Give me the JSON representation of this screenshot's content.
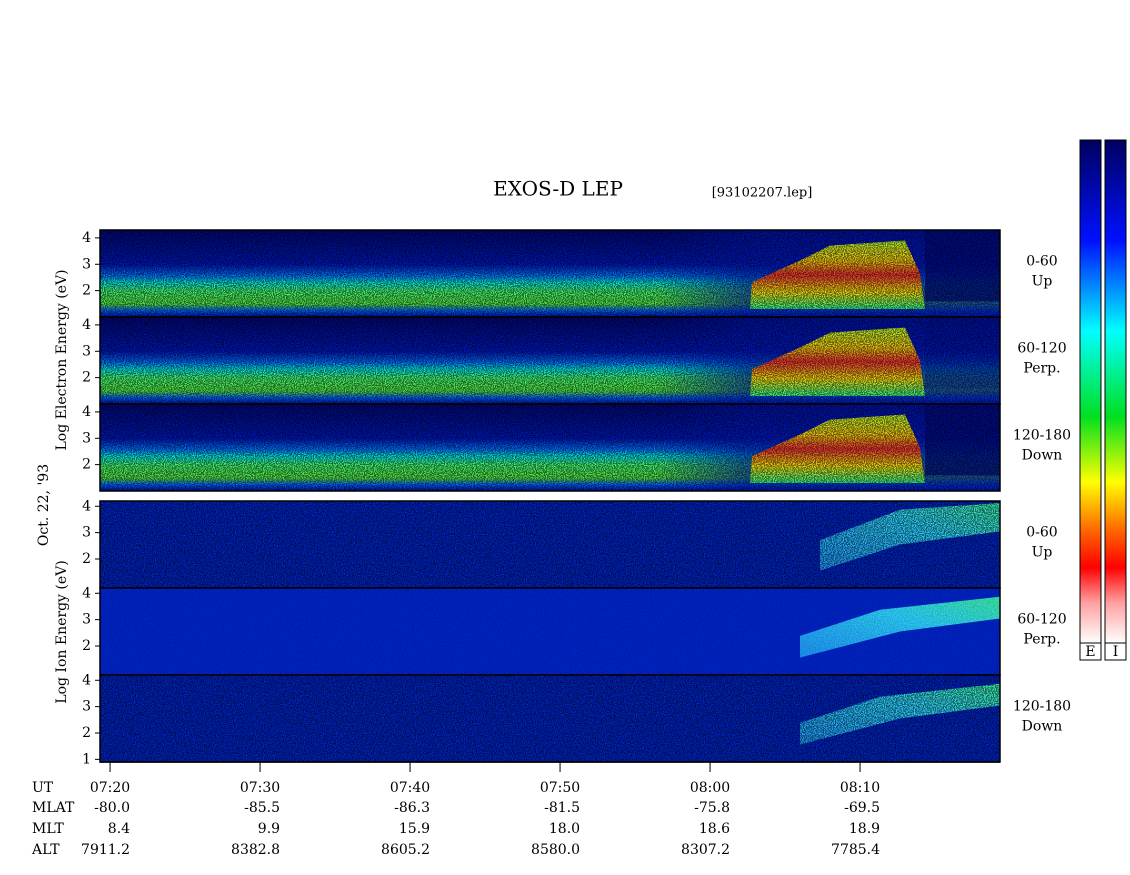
{
  "chart_data": {
    "type": "spectrogram",
    "title": "EXOS-D LEP",
    "file_label": "[93102207.lep]",
    "date_label": "Oct. 22, '93",
    "group_labels": {
      "electron": "Log  Electron  Energy (eV)",
      "ion": "Log  Ion  Energy (eV)"
    },
    "xlim": [
      439.33,
      499.33
    ],
    "xticks": [
      {
        "value": 440,
        "label": "07:20"
      },
      {
        "value": 450,
        "label": "07:30"
      },
      {
        "value": 460,
        "label": "07:40"
      },
      {
        "value": 470,
        "label": "07:50"
      },
      {
        "value": 480,
        "label": "08:00"
      },
      {
        "value": 490,
        "label": "08:10"
      }
    ],
    "panels": [
      {
        "group": "electron",
        "label": [
          "0-60",
          "Up"
        ],
        "ylim": [
          1,
          4.3
        ],
        "yticks": [
          2,
          3,
          4
        ]
      },
      {
        "group": "electron",
        "label": [
          "60-120",
          "Perp."
        ],
        "ylim": [
          1,
          4.3
        ],
        "yticks": [
          2,
          3,
          4
        ]
      },
      {
        "group": "electron",
        "label": [
          "120-180",
          "Down"
        ],
        "ylim": [
          1,
          4.3
        ],
        "yticks": [
          2,
          3,
          4
        ]
      },
      {
        "group": "ion",
        "label": [
          "0-60",
          "Up"
        ],
        "ylim": [
          0.9,
          4.2
        ],
        "yticks": [
          2,
          3,
          4
        ]
      },
      {
        "group": "ion",
        "label": [
          "60-120",
          "Perp."
        ],
        "ylim": [
          0.9,
          4.2
        ],
        "yticks": [
          2,
          3,
          4
        ]
      },
      {
        "group": "ion",
        "label": [
          "120-180",
          "Down"
        ],
        "ylim": [
          0.9,
          4.2
        ],
        "yticks": [
          1,
          2,
          3,
          4
        ]
      }
    ],
    "ephemeris": {
      "row_labels": [
        "UT",
        "MLAT",
        "MLT",
        "ALT"
      ],
      "rows": [
        [
          "-80.0",
          "-85.5",
          "-86.3",
          "-81.5",
          "-75.8",
          "-69.5"
        ],
        [
          "8.4",
          "9.9",
          "15.9",
          "18.0",
          "18.6",
          "18.9"
        ],
        [
          "7911.2",
          "8382.8",
          "8605.2",
          "8580.0",
          "8307.2",
          "7785.4"
        ]
      ]
    },
    "colorbar_labels": [
      "E",
      "I"
    ]
  }
}
